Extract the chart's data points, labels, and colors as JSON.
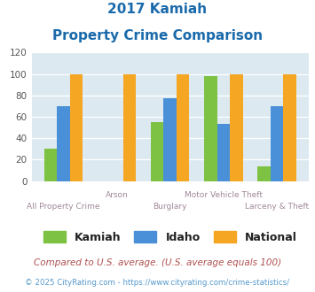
{
  "title_line1": "2017 Kamiah",
  "title_line2": "Property Crime Comparison",
  "categories": [
    "All Property Crime",
    "Arson",
    "Burglary",
    "Motor Vehicle Theft",
    "Larceny & Theft"
  ],
  "kamiah": [
    30,
    0,
    55,
    98,
    14
  ],
  "idaho": [
    70,
    0,
    77,
    53,
    70
  ],
  "national": [
    100,
    100,
    100,
    100,
    100
  ],
  "color_kamiah": "#7dc242",
  "color_idaho": "#4a90d9",
  "color_national": "#f5a623",
  "ylim": [
    0,
    120
  ],
  "yticks": [
    0,
    20,
    40,
    60,
    80,
    100,
    120
  ],
  "bg_color": "#dce9f0",
  "legend_labels": [
    "Kamiah",
    "Idaho",
    "National"
  ],
  "footnote1": "Compared to U.S. average. (U.S. average equals 100)",
  "footnote2": "© 2025 CityRating.com - https://www.cityrating.com/crime-statistics/",
  "title_color": "#1a6aab",
  "footnote1_color": "#b05050",
  "footnote2_color": "#5599cc",
  "xlabel_color": "#a08898",
  "xtick_labels_top": [
    "",
    "Arson",
    "",
    "Motor Vehicle Theft",
    ""
  ],
  "xtick_labels_bottom": [
    "All Property Crime",
    "",
    "Burglary",
    "",
    "Larceny & Theft"
  ]
}
